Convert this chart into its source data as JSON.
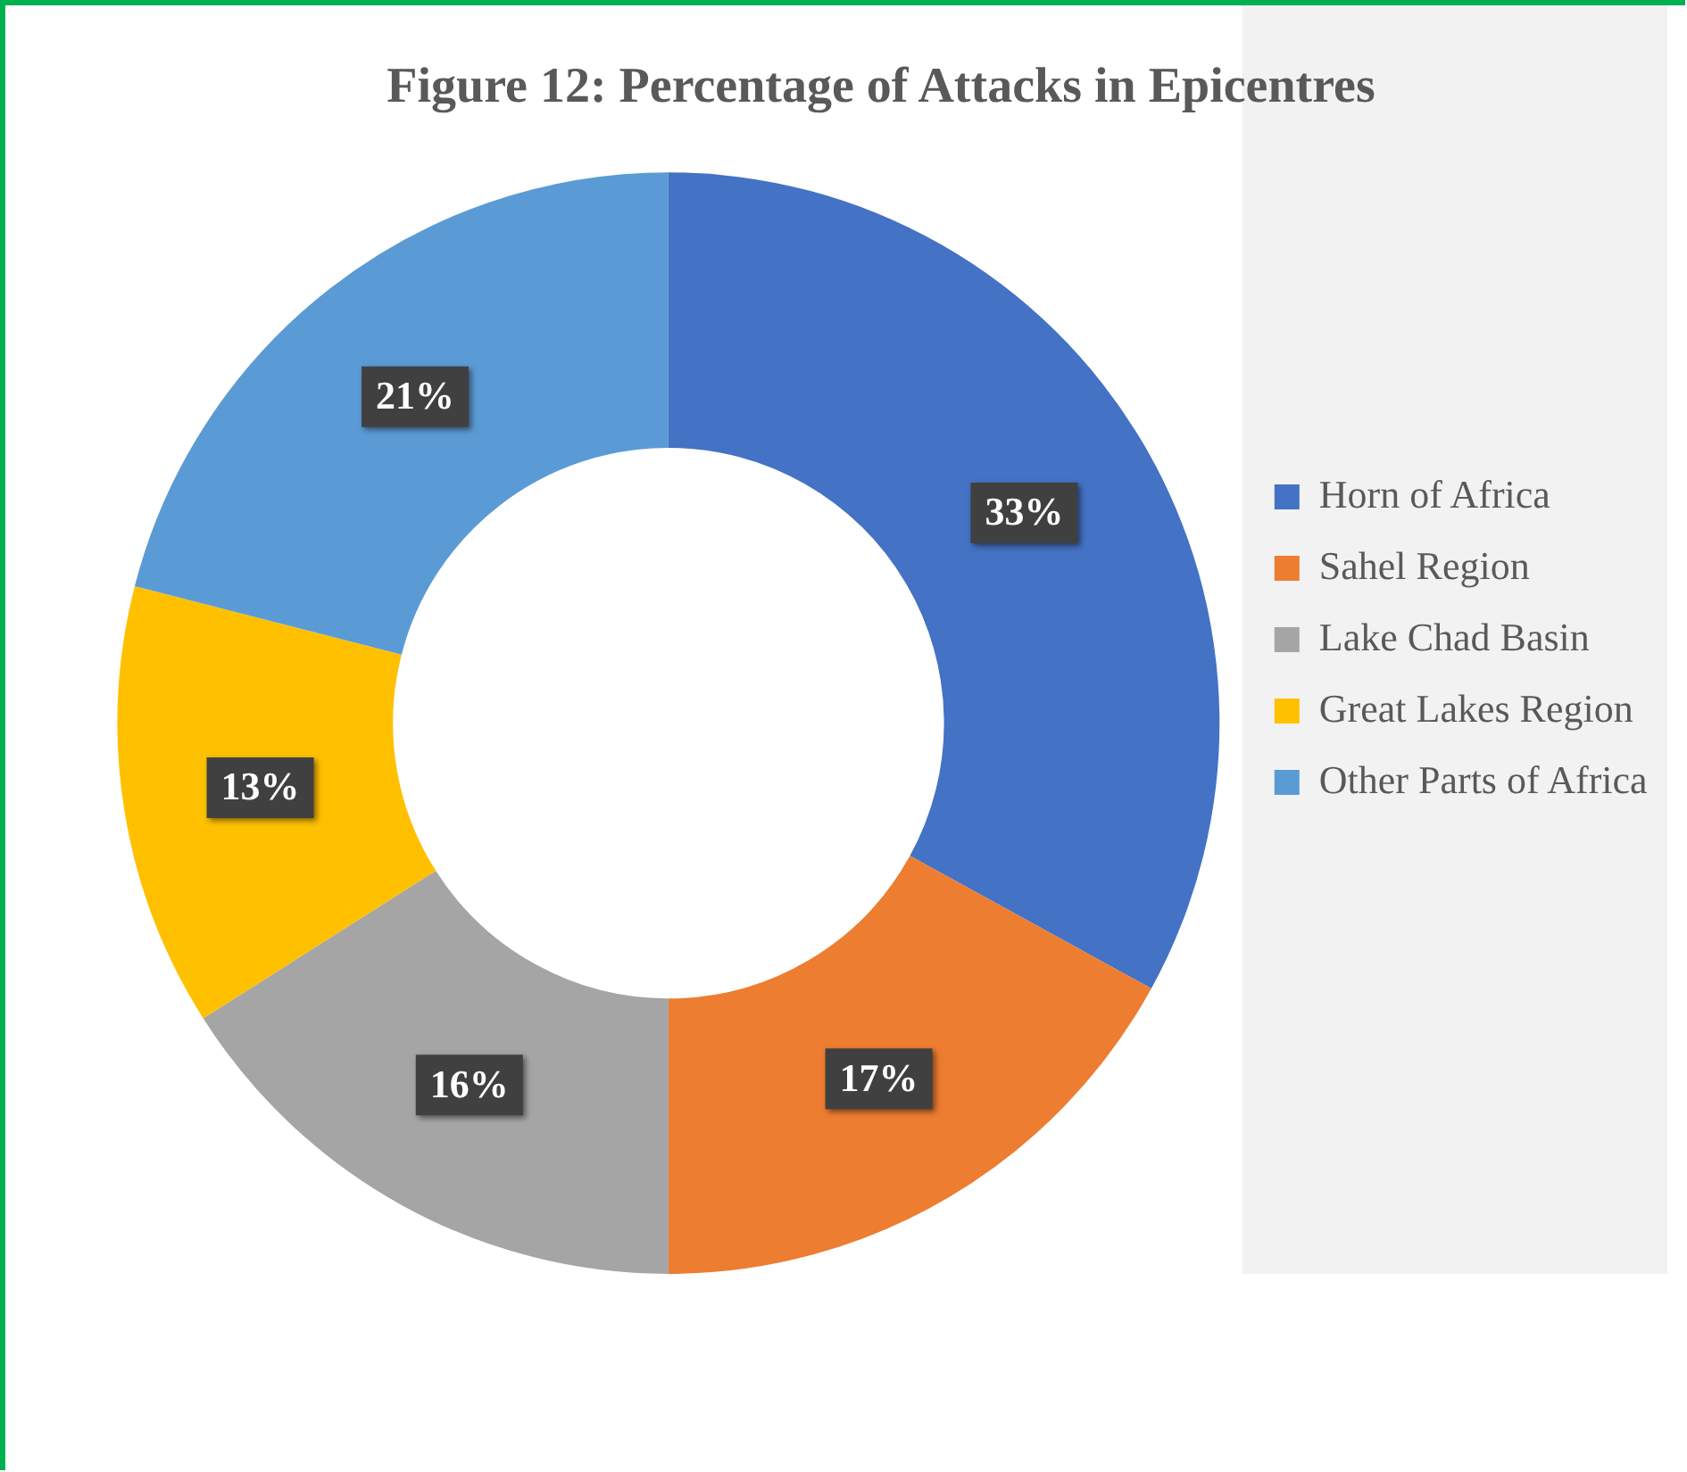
{
  "chart_data": {
    "type": "donut",
    "title": "Figure 12: Percentage of Attacks in Epicentres",
    "categories": [
      "Horn of Africa",
      "Sahel Region",
      "Lake Chad Basin",
      "Great Lakes Region",
      "Other Parts of Africa"
    ],
    "values": [
      33,
      17,
      16,
      13,
      21
    ],
    "colors": [
      "#4472c4",
      "#ed7d31",
      "#a5a5a5",
      "#ffc000",
      "#5b9bd5"
    ],
    "value_labels": [
      "33%",
      "17%",
      "16%",
      "13%",
      "21%"
    ],
    "legend": "right"
  }
}
